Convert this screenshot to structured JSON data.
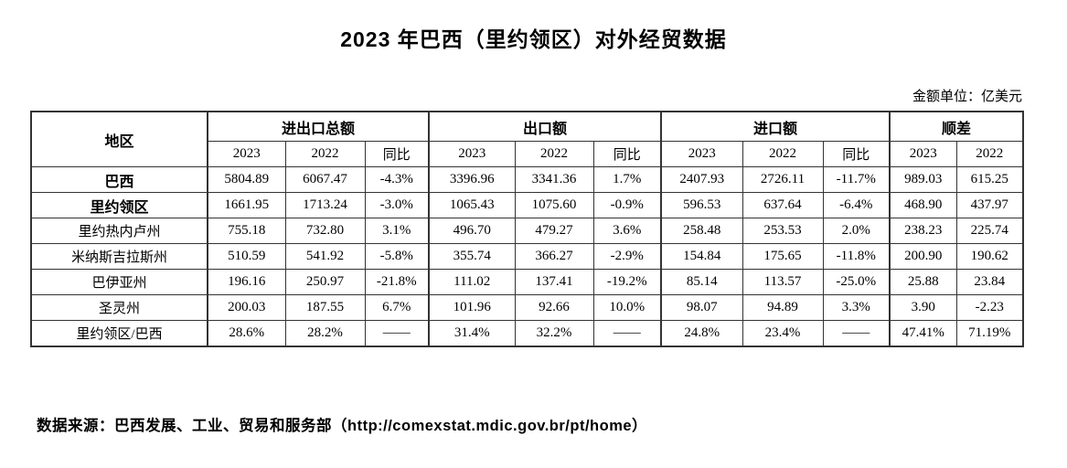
{
  "title": "2023 年巴西（里约领区）对外经贸数据",
  "unit_note": "金额单位：亿美元",
  "table": {
    "region_header": "地区",
    "groups": [
      {
        "label": "进出口总额",
        "cols": [
          "2023",
          "2022",
          "同比"
        ]
      },
      {
        "label": "出口额",
        "cols": [
          "2023",
          "2022",
          "同比"
        ]
      },
      {
        "label": "进口额",
        "cols": [
          "2023",
          "2022",
          "同比"
        ]
      },
      {
        "label": "顺差",
        "cols": [
          "2023",
          "2022"
        ]
      }
    ],
    "rows": [
      {
        "region": "巴西",
        "bold": true,
        "values": [
          "5804.89",
          "6067.47",
          "-4.3%",
          "3396.96",
          "3341.36",
          "1.7%",
          "2407.93",
          "2726.11",
          "-11.7%",
          "989.03",
          "615.25"
        ]
      },
      {
        "region": "里约领区",
        "bold": true,
        "values": [
          "1661.95",
          "1713.24",
          "-3.0%",
          "1065.43",
          "1075.60",
          "-0.9%",
          "596.53",
          "637.64",
          "-6.4%",
          "468.90",
          "437.97"
        ]
      },
      {
        "region": "里约热内卢州",
        "bold": false,
        "values": [
          "755.18",
          "732.80",
          "3.1%",
          "496.70",
          "479.27",
          "3.6%",
          "258.48",
          "253.53",
          "2.0%",
          "238.23",
          "225.74"
        ]
      },
      {
        "region": "米纳斯吉拉斯州",
        "bold": false,
        "values": [
          "510.59",
          "541.92",
          "-5.8%",
          "355.74",
          "366.27",
          "-2.9%",
          "154.84",
          "175.65",
          "-11.8%",
          "200.90",
          "190.62"
        ]
      },
      {
        "region": "巴伊亚州",
        "bold": false,
        "values": [
          "196.16",
          "250.97",
          "-21.8%",
          "111.02",
          "137.41",
          "-19.2%",
          "85.14",
          "113.57",
          "-25.0%",
          "25.88",
          "23.84"
        ]
      },
      {
        "region": "圣灵州",
        "bold": false,
        "values": [
          "200.03",
          "187.55",
          "6.7%",
          "101.96",
          "92.66",
          "10.0%",
          "98.07",
          "94.89",
          "3.3%",
          "3.90",
          "-2.23"
        ]
      },
      {
        "region": "里约领区/巴西",
        "bold": false,
        "values": [
          "28.6%",
          "28.2%",
          "——",
          "31.4%",
          "32.2%",
          "——",
          "24.8%",
          "23.4%",
          "——",
          "47.41%",
          "71.19%"
        ]
      }
    ]
  },
  "footer": "数据来源：巴西发展、工业、贸易和服务部（http://comexstat.mdic.gov.br/pt/home）"
}
